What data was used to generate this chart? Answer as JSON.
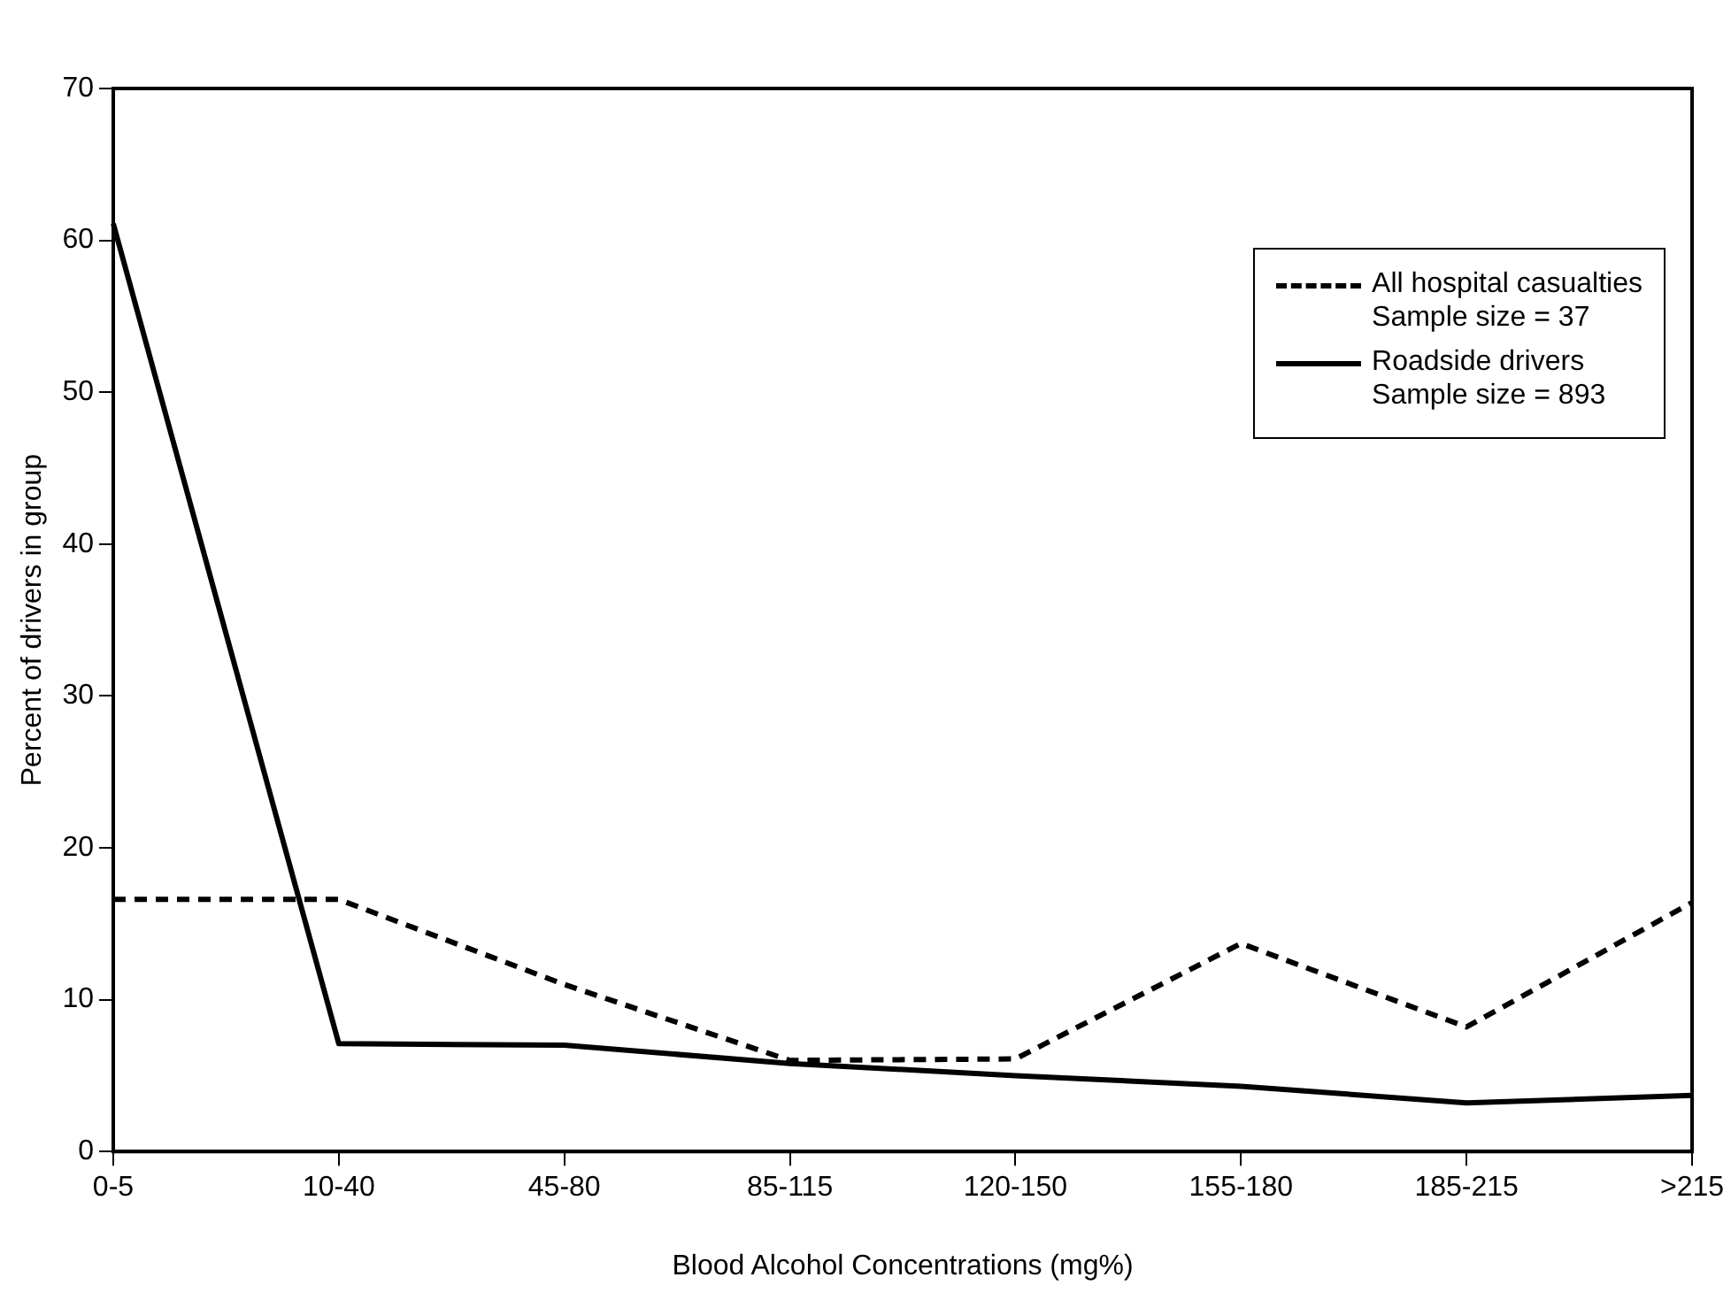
{
  "chart_data": {
    "type": "line",
    "xlabel": "Blood Alcohol Concentrations (mg%)",
    "ylabel": "Percent of drivers in group",
    "categories": [
      "0-5",
      "10-40",
      "45-80",
      "85-115",
      "120-150",
      "155-180",
      "185-215",
      ">215"
    ],
    "series": [
      {
        "name": "All hospital casualties\nSample size = 37",
        "color": "#000000",
        "line_style": "dashed",
        "values": [
          16.6,
          16.6,
          11,
          6,
          6.1,
          13.7,
          8.2,
          16.4
        ]
      },
      {
        "name": "Roadside drivers\nSample size = 893",
        "color": "#000000",
        "line_style": "solid",
        "values": [
          61.1,
          7.1,
          7,
          5.8,
          5,
          4.3,
          3.2,
          3.7
        ]
      }
    ],
    "ylim": [
      0,
      70
    ],
    "yticks": [
      0,
      10,
      20,
      30,
      40,
      50,
      60,
      70
    ],
    "grid": false,
    "legend": "top right",
    "marker": "none"
  }
}
